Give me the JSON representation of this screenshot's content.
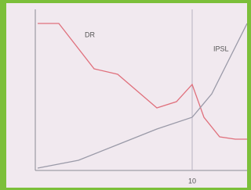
{
  "chart_data": {
    "type": "line",
    "series": [
      {
        "name": "DR",
        "color": "#e0707c",
        "x": [
          0.15,
          1.5,
          3.75,
          5.25,
          7.75,
          9,
          10,
          10.75,
          11.75,
          12.75,
          13.5
        ],
        "values": [
          92.5,
          92.5,
          63.5,
          60,
          38.5,
          42.5,
          53.5,
          32.5,
          20,
          18.5,
          18.5
        ]
      },
      {
        "name": "IPSL",
        "color": "#9a9aa8",
        "x": [
          0.15,
          2.75,
          5.25,
          7.75,
          10,
          11.25,
          12.25,
          13.5
        ],
        "values": [
          0,
          5,
          15,
          25,
          32.5,
          47.5,
          67.5,
          92.5
        ]
      }
    ],
    "xlim": [
      0,
      13.5
    ],
    "ylim": [
      0,
      100
    ],
    "xticks": [
      10
    ],
    "grid": true
  }
}
